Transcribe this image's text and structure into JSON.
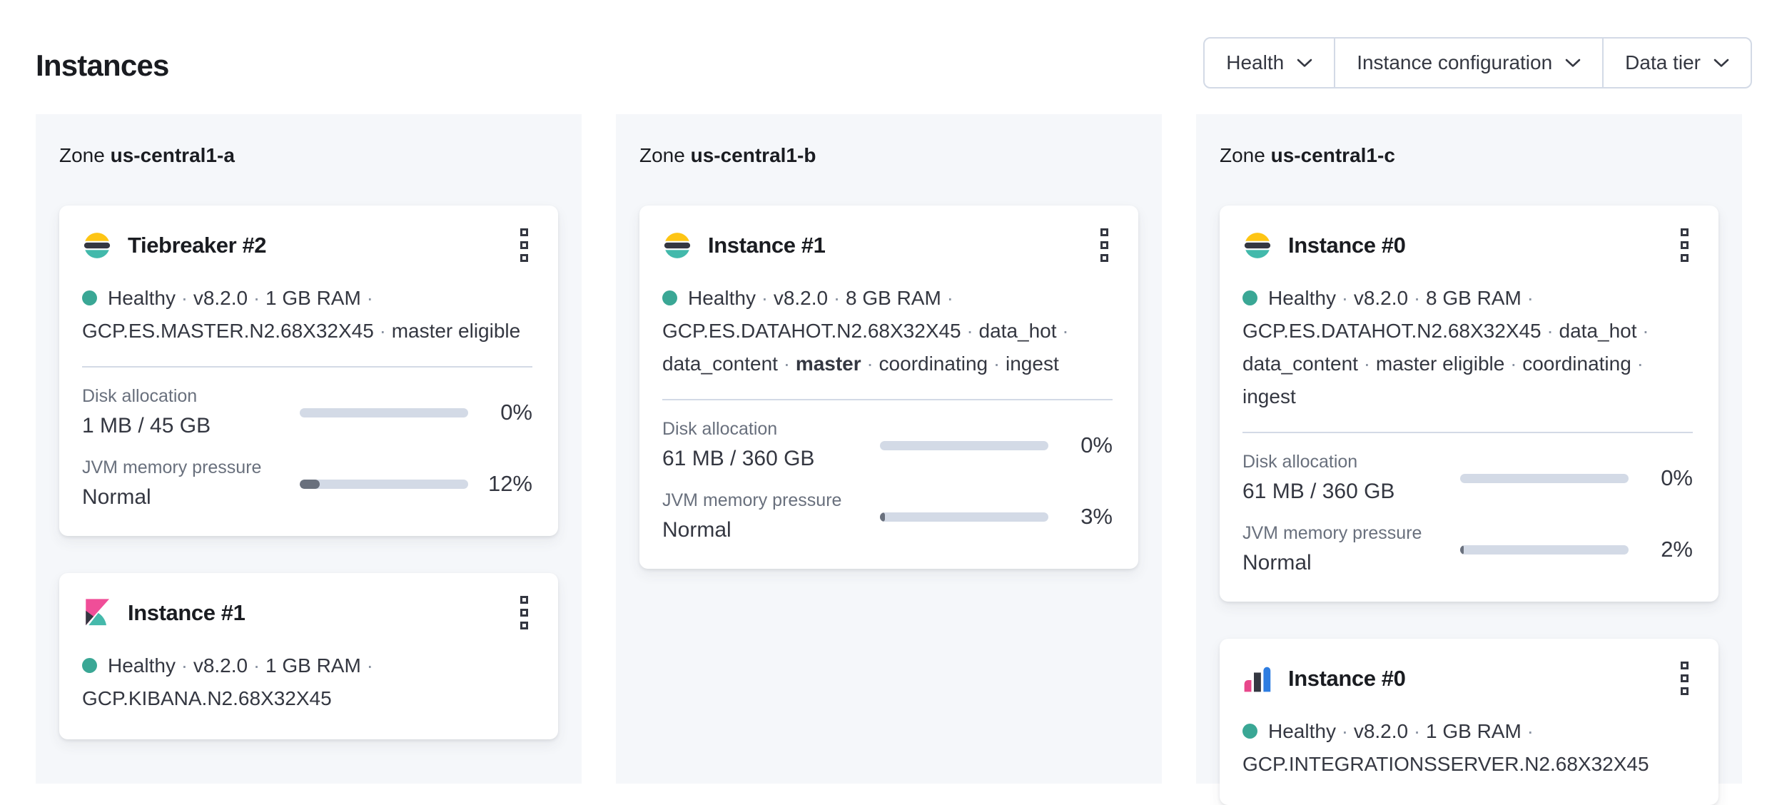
{
  "page": {
    "title": "Instances"
  },
  "filters": {
    "health": {
      "label": "Health"
    },
    "instance_configuration": {
      "label": "Instance configuration"
    },
    "data_tier": {
      "label": "Data tier"
    }
  },
  "zones": [
    {
      "label": "Zone",
      "name": "us-central1-a",
      "cards": [
        {
          "title": "Tiebreaker #2",
          "logo": "elasticsearch-logo",
          "meta": [
            "Healthy",
            "v8.2.0",
            "1 GB RAM",
            "GCP.ES.MASTER.N2.68X32X45",
            "master eligible"
          ],
          "disk": {
            "label": "Disk allocation",
            "value": "1 MB / 45 GB",
            "percent": "0%",
            "fill": 0
          },
          "jvm": {
            "label": "JVM memory pressure",
            "value": "Normal",
            "percent": "12%",
            "fill": 12
          }
        },
        {
          "title": "Instance #1",
          "logo": "kibana-logo",
          "meta": [
            "Healthy",
            "v8.2.0",
            "1 GB RAM",
            "GCP.KIBANA.N2.68X32X45"
          ]
        }
      ]
    },
    {
      "label": "Zone",
      "name": "us-central1-b",
      "cards": [
        {
          "title": "Instance #1",
          "logo": "elasticsearch-logo",
          "meta": [
            "Healthy",
            "v8.2.0",
            "8 GB RAM",
            "GCP.ES.DATAHOT.N2.68X32X45",
            "data_hot",
            "data_content",
            "master",
            "coordinating",
            "ingest"
          ],
          "disk": {
            "label": "Disk allocation",
            "value": "61 MB / 360 GB",
            "percent": "0%",
            "fill": 0
          },
          "jvm": {
            "label": "JVM memory pressure",
            "value": "Normal",
            "percent": "3%",
            "fill": 3
          }
        }
      ]
    },
    {
      "label": "Zone",
      "name": "us-central1-c",
      "cards": [
        {
          "title": "Instance #0",
          "logo": "elasticsearch-logo",
          "meta": [
            "Healthy",
            "v8.2.0",
            "8 GB RAM",
            "GCP.ES.DATAHOT.N2.68X32X45",
            "data_hot",
            "data_content",
            "master eligible",
            "coordinating",
            "ingest"
          ],
          "disk": {
            "label": "Disk allocation",
            "value": "61 MB / 360 GB",
            "percent": "0%",
            "fill": 0
          },
          "jvm": {
            "label": "JVM memory pressure",
            "value": "Normal",
            "percent": "2%",
            "fill": 2
          }
        },
        {
          "title": "Instance #0",
          "logo": "integrations-server-logo",
          "meta": [
            "Healthy",
            "v8.2.0",
            "1 GB RAM",
            "GCP.INTEGRATIONSSERVER.N2.68X32X45"
          ]
        }
      ]
    }
  ],
  "icons": {
    "kebab": "boxes-vertical-icon",
    "chevron": "chevron-down-icon",
    "health_dot": "health-status-dot"
  },
  "colors": {
    "health_teal": "#3aa795",
    "es_yellow": "#fec514",
    "brand_dark": "#343741",
    "kibana_pink": "#f04e98",
    "integrations_blue": "#2e7de1",
    "bar_track": "#d3dae6",
    "bar_fill": "#69707d",
    "panel_bg": "#f5f7fa"
  }
}
